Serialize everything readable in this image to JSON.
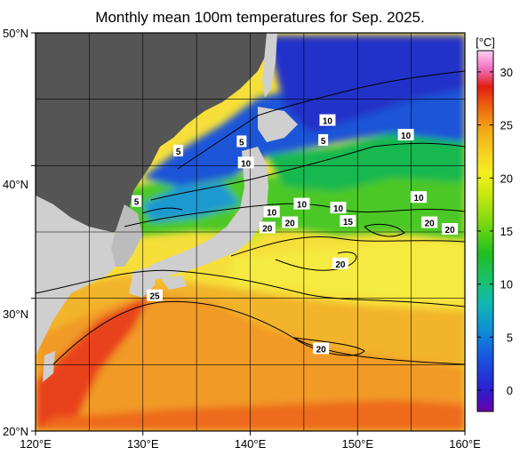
{
  "title": "Monthly mean 100m temperatures for Sep. 2025.",
  "colorbar": {
    "unit_label": "[°C]",
    "tick_labels": [
      "30",
      "25",
      "20",
      "15",
      "10",
      "5",
      "0"
    ],
    "tick_values": [
      30,
      25,
      20,
      15,
      10,
      5,
      0
    ],
    "range": [
      -2,
      32
    ]
  },
  "axes": {
    "lat_labels": [
      "50°N",
      "40°N",
      "30°N",
      "20°N"
    ],
    "lon_labels": [
      "120°E",
      "130°E",
      "140°E",
      "150°E",
      "160°E"
    ],
    "lat_range": [
      20,
      50
    ],
    "lon_range": [
      120,
      160
    ],
    "grid": "every 5 degrees"
  },
  "contour_labels": [
    {
      "text": "10",
      "lon": 147.2,
      "lat": 43.4
    },
    {
      "text": "10",
      "lon": 154.5,
      "lat": 42.3
    },
    {
      "text": "5",
      "lon": 133.3,
      "lat": 41.1
    },
    {
      "text": "5",
      "lon": 139.2,
      "lat": 41.8
    },
    {
      "text": "5",
      "lon": 146.8,
      "lat": 41.9
    },
    {
      "text": "10",
      "lon": 139.6,
      "lat": 40.2
    },
    {
      "text": "5",
      "lon": 129.4,
      "lat": 37.3
    },
    {
      "text": "10",
      "lon": 155.7,
      "lat": 37.6
    },
    {
      "text": "10",
      "lon": 142.0,
      "lat": 36.5
    },
    {
      "text": "10",
      "lon": 144.8,
      "lat": 37.1
    },
    {
      "text": "10",
      "lon": 148.2,
      "lat": 36.8
    },
    {
      "text": "15",
      "lon": 149.1,
      "lat": 35.8
    },
    {
      "text": "20",
      "lon": 141.6,
      "lat": 35.3
    },
    {
      "text": "20",
      "lon": 143.7,
      "lat": 35.7
    },
    {
      "text": "20",
      "lon": 156.7,
      "lat": 35.7
    },
    {
      "text": "20",
      "lon": 158.6,
      "lat": 35.2
    },
    {
      "text": "20",
      "lon": 148.4,
      "lat": 32.6
    },
    {
      "text": "25",
      "lon": 131.1,
      "lat": 30.2
    },
    {
      "text": "20",
      "lon": 146.6,
      "lat": 26.2
    }
  ]
}
